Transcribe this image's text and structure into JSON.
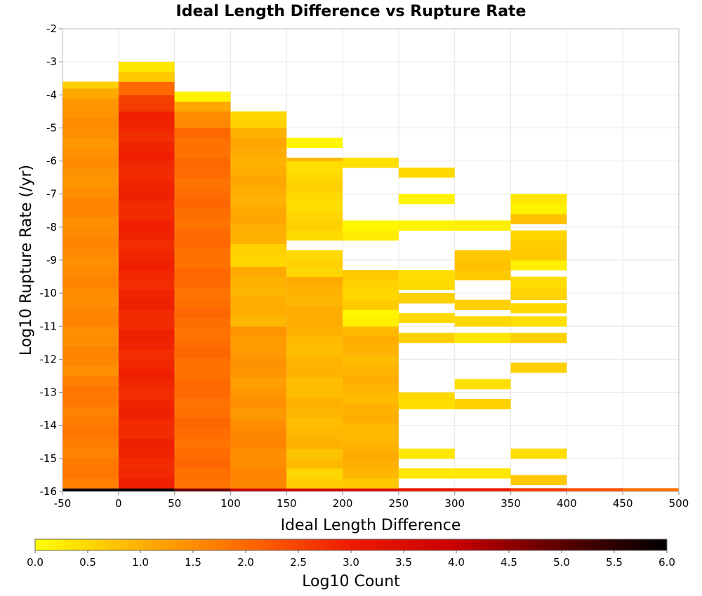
{
  "chart_data": {
    "type": "heatmap",
    "title": "Ideal Length Difference vs Rupture Rate",
    "xlabel": "Ideal Length Difference",
    "ylabel": "Log10 Rupture Rate (/yr)",
    "colorbar_label": "Log10 Count",
    "xlim": [
      -50,
      500
    ],
    "ylim": [
      -16,
      -2
    ],
    "x_ticks": [
      "-50",
      "0",
      "50",
      "100",
      "150",
      "200",
      "250",
      "300",
      "350",
      "400",
      "450",
      "500"
    ],
    "y_ticks": [
      "-2",
      "-3",
      "-4",
      "-5",
      "-6",
      "-7",
      "-8",
      "-9",
      "-10",
      "-11",
      "-12",
      "-13",
      "-14",
      "-15",
      "-16"
    ],
    "colorbar_range": [
      0,
      6
    ],
    "colorbar_ticks": [
      "0.0",
      "0.5",
      "1.0",
      "1.5",
      "2.0",
      "2.5",
      "3.0",
      "3.5",
      "4.0",
      "4.5",
      "5.0",
      "5.5",
      "6.0"
    ],
    "colormap": [
      "#ffff00",
      "#ffb000",
      "#ff6a00",
      "#ee1a00",
      "#c80000",
      "#5a0000",
      "#000000"
    ],
    "grid": true,
    "bin_width_x": 50,
    "bin_height_y": 0.3,
    "columns": [
      {
        "x_start": -50,
        "runs": [
          [
            -16,
            -15.9,
            6.0
          ],
          [
            -15.9,
            -12.5,
            1.75
          ],
          [
            -12.5,
            -6.8,
            1.55
          ],
          [
            -6.8,
            -4.1,
            1.45
          ],
          [
            -4.1,
            -3.8,
            1.1
          ],
          [
            -3.8,
            -3.6,
            0.6
          ]
        ]
      },
      {
        "x_start": 0,
        "runs": [
          [
            -16,
            -15.9,
            6.0
          ],
          [
            -15.9,
            -4.5,
            2.85
          ],
          [
            -4.5,
            -4.0,
            2.5
          ],
          [
            -4.0,
            -3.6,
            2.0
          ],
          [
            -3.6,
            -3.3,
            0.7
          ],
          [
            -3.3,
            -3.0,
            0.3
          ]
        ]
      },
      {
        "x_start": 50,
        "runs": [
          [
            -16,
            -15.9,
            4.8
          ],
          [
            -15.9,
            -5.0,
            1.95
          ],
          [
            -5.0,
            -4.5,
            1.6
          ],
          [
            -4.5,
            -4.2,
            1.1
          ],
          [
            -4.2,
            -3.9,
            0.15
          ]
        ]
      },
      {
        "x_start": 100,
        "runs": [
          [
            -16,
            -15.9,
            4.0
          ],
          [
            -15.9,
            -13.8,
            1.55
          ],
          [
            -13.8,
            -11.0,
            1.35
          ],
          [
            -11.0,
            -9.2,
            1.0
          ],
          [
            -9.2,
            -8.5,
            0.6
          ],
          [
            -8.5,
            -5.0,
            1.05
          ],
          [
            -5.0,
            -4.5,
            0.6
          ]
        ]
      },
      {
        "x_start": 150,
        "runs": [
          [
            -16,
            -15.9,
            3.8
          ],
          [
            -15.9,
            -15.3,
            0.6
          ],
          [
            -15.3,
            -14.7,
            0.8
          ],
          [
            -14.7,
            -11.0,
            0.9
          ],
          [
            -11.0,
            -9.5,
            1.0
          ],
          [
            -9.5,
            -8.7,
            0.5
          ],
          [
            -8.4,
            -6.0,
            0.5
          ],
          [
            -6.0,
            -5.9,
            0.9
          ],
          [
            -5.6,
            -5.3,
            0.1
          ]
        ]
      },
      {
        "x_start": 200,
        "runs": [
          [
            -16,
            -15.9,
            3.6
          ],
          [
            -15.9,
            -15.6,
            0.7
          ],
          [
            -15.6,
            -14.5,
            1.0
          ],
          [
            -14.5,
            -11.0,
            0.95
          ],
          [
            -11.0,
            -10.5,
            0.2
          ],
          [
            -10.5,
            -9.3,
            0.6
          ],
          [
            -8.4,
            -7.8,
            0.15
          ],
          [
            -6.2,
            -5.9,
            0.4
          ]
        ]
      },
      {
        "x_start": 250,
        "runs": [
          [
            -16,
            -15.9,
            3.1
          ],
          [
            -15.6,
            -15.3,
            0.3
          ],
          [
            -15.0,
            -14.7,
            0.3
          ],
          [
            -13.5,
            -13.0,
            0.4
          ],
          [
            -11.5,
            -11.2,
            0.6
          ],
          [
            -10.9,
            -10.6,
            0.5
          ],
          [
            -10.3,
            -10.0,
            0.6
          ],
          [
            -9.9,
            -9.3,
            0.5
          ],
          [
            -8.1,
            -7.8,
            0.15
          ],
          [
            -7.3,
            -7.0,
            0.15
          ],
          [
            -6.5,
            -6.2,
            0.5
          ]
        ]
      },
      {
        "x_start": 300,
        "runs": [
          [
            -16,
            -15.9,
            3.0
          ],
          [
            -15.6,
            -15.3,
            0.3
          ],
          [
            -13.5,
            -13.2,
            0.6
          ],
          [
            -12.9,
            -12.6,
            0.4
          ],
          [
            -11.5,
            -11.2,
            0.3
          ],
          [
            -11.0,
            -10.7,
            0.5
          ],
          [
            -10.5,
            -10.2,
            0.6
          ],
          [
            -9.6,
            -8.7,
            0.7
          ],
          [
            -8.1,
            -7.8,
            0.2
          ]
        ]
      },
      {
        "x_start": 350,
        "runs": [
          [
            -16,
            -15.9,
            2.6
          ],
          [
            -15.8,
            -15.5,
            0.7
          ],
          [
            -15.0,
            -14.7,
            0.4
          ],
          [
            -12.4,
            -12.1,
            0.6
          ],
          [
            -11.5,
            -11.2,
            0.6
          ],
          [
            -11.0,
            -10.7,
            0.4
          ],
          [
            -10.6,
            -10.3,
            0.5
          ],
          [
            -10.2,
            -9.5,
            0.5
          ],
          [
            -9.3,
            -9.0,
            0.2
          ],
          [
            -9.0,
            -8.1,
            0.6
          ],
          [
            -7.9,
            -7.6,
            0.8
          ],
          [
            -7.6,
            -7.0,
            0.2
          ]
        ]
      },
      {
        "x_start": 400,
        "runs": [
          [
            -16,
            -15.9,
            2.3
          ]
        ]
      },
      {
        "x_start": 450,
        "runs": [
          [
            -16,
            -15.9,
            1.9
          ]
        ]
      }
    ]
  }
}
